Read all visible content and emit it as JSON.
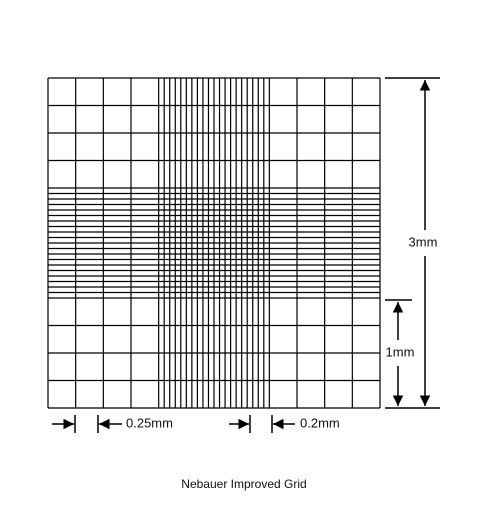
{
  "dimensions": {
    "total": "3mm",
    "large_square": "1mm",
    "outer_square": "0.25mm",
    "inner_square": "0.2mm"
  },
  "caption": "Nebauer Improved Grid"
}
